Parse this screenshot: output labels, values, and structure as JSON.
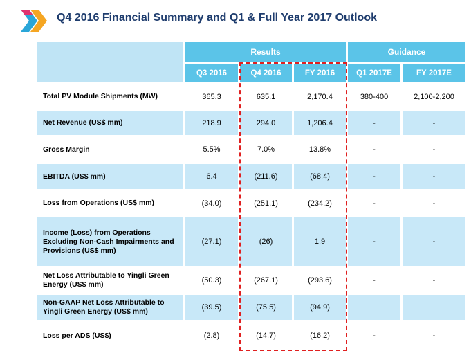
{
  "title": "Q4 2016 Financial Summary and Q1 & Full Year 2017 Outlook",
  "logo_icon": "chevron-arrows-icon",
  "colors": {
    "header": "#5bc4e8",
    "shade": "#c8e8f8",
    "title": "#1f3d6e",
    "highlight_box": "#e02020"
  },
  "headers": {
    "results": "Results",
    "guidance": "Guidance",
    "columns": [
      "Q3  2016",
      "Q4 2016",
      "FY 2016",
      "Q1  2017E",
      "FY  2017E"
    ]
  },
  "rows": [
    {
      "label": "Total PV Module Shipments (MW)",
      "values": [
        "365.3",
        "635.1",
        "2,170.4",
        "380-400",
        "2,100-2,200"
      ]
    },
    {
      "label": "Net Revenue (US$ mm)",
      "values": [
        "218.9",
        "294.0",
        "1,206.4",
        "-",
        "-"
      ]
    },
    {
      "label": "Gross Margin",
      "values": [
        "5.5%",
        "7.0%",
        "13.8%",
        "-",
        "-"
      ]
    },
    {
      "label": "EBITDA (US$ mm)",
      "values": [
        "6.4",
        "(211.6)",
        "(68.4)",
        "-",
        "-"
      ]
    },
    {
      "label": "Loss from Operations (US$ mm)",
      "values": [
        "(34.0)",
        "(251.1)",
        "(234.2)",
        "-",
        "-"
      ]
    },
    {
      "label": "Income (Loss) from Operations Excluding Non-Cash Impairments and Provisions (US$ mm)",
      "values": [
        "(27.1)",
        "(26)",
        "1.9",
        "-",
        "-"
      ]
    },
    {
      "label": "Net Loss Attributable to Yingli Green Energy (US$ mm)",
      "values": [
        "(50.3)",
        "(267.1)",
        "(293.6)",
        "-",
        "-"
      ]
    },
    {
      "label": "Non-GAAP Net Loss Attributable to Yingli Green Energy (US$ mm)",
      "values": [
        "(39.5)",
        "(75.5)",
        "(94.9)",
        "",
        ""
      ]
    },
    {
      "label": "Loss per ADS (US$)",
      "values": [
        "(2.8)",
        "(14.7)",
        "(16.2)",
        "-",
        "-"
      ]
    }
  ]
}
